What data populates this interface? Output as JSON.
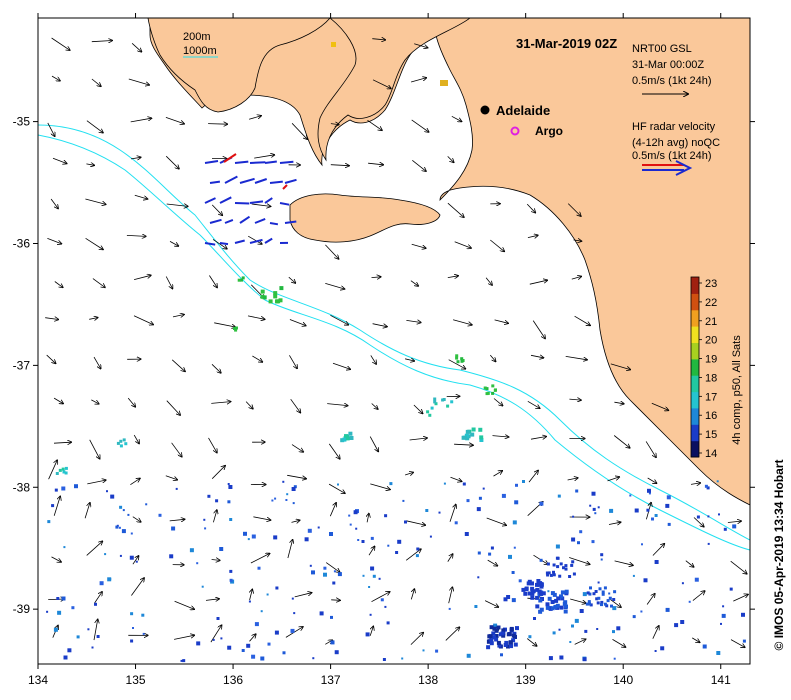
{
  "title": "31-Mar-2019 02Z",
  "credit": "© IMOS 05-Apr-2019 13:34 Hobart",
  "depth_legend": {
    "line1": "200m",
    "line2": "1000m"
  },
  "model_legend": {
    "line1": "NRT00 GSL",
    "line2": "31-Mar 00:00Z",
    "line3": "0.5m/s (1kt 24h)"
  },
  "radar_legend": {
    "line1": "HF radar velocity",
    "line2": "(4-12h avg) noQC",
    "line3": "0.5m/s (1kt 24h)"
  },
  "places": [
    {
      "name": "Adelaide",
      "lon": 138.6,
      "lat": -34.93
    },
    {
      "name": "Argo",
      "lon": 138.78,
      "lat": -35.1
    }
  ],
  "colorbar": {
    "label": "4h comp, p50, All Sats",
    "ticks": [
      "14",
      "15",
      "16",
      "17",
      "18",
      "19",
      "20",
      "21",
      "22",
      "23"
    ],
    "colors": [
      "#0a1060",
      "#1a3cc8",
      "#1e88d8",
      "#25c4d0",
      "#22c8a0",
      "#22b840",
      "#a8d020",
      "#f0e020",
      "#f0a020",
      "#d05010",
      "#a02010"
    ]
  },
  "axes": {
    "x_ticks": [
      "134",
      "135",
      "136",
      "137",
      "138",
      "139",
      "140",
      "141"
    ],
    "y_ticks": [
      "-35",
      "-36",
      "-37",
      "-38",
      "-39"
    ],
    "lon_range": [
      134,
      141.3
    ],
    "lat_range": [
      -39.45,
      -34.15
    ]
  },
  "colors": {
    "land": "#fac89a",
    "contour": "#22e0f0",
    "radar_blue": "#1a2ad0",
    "radar_red": "#e01010",
    "argo": "#e020e0"
  }
}
